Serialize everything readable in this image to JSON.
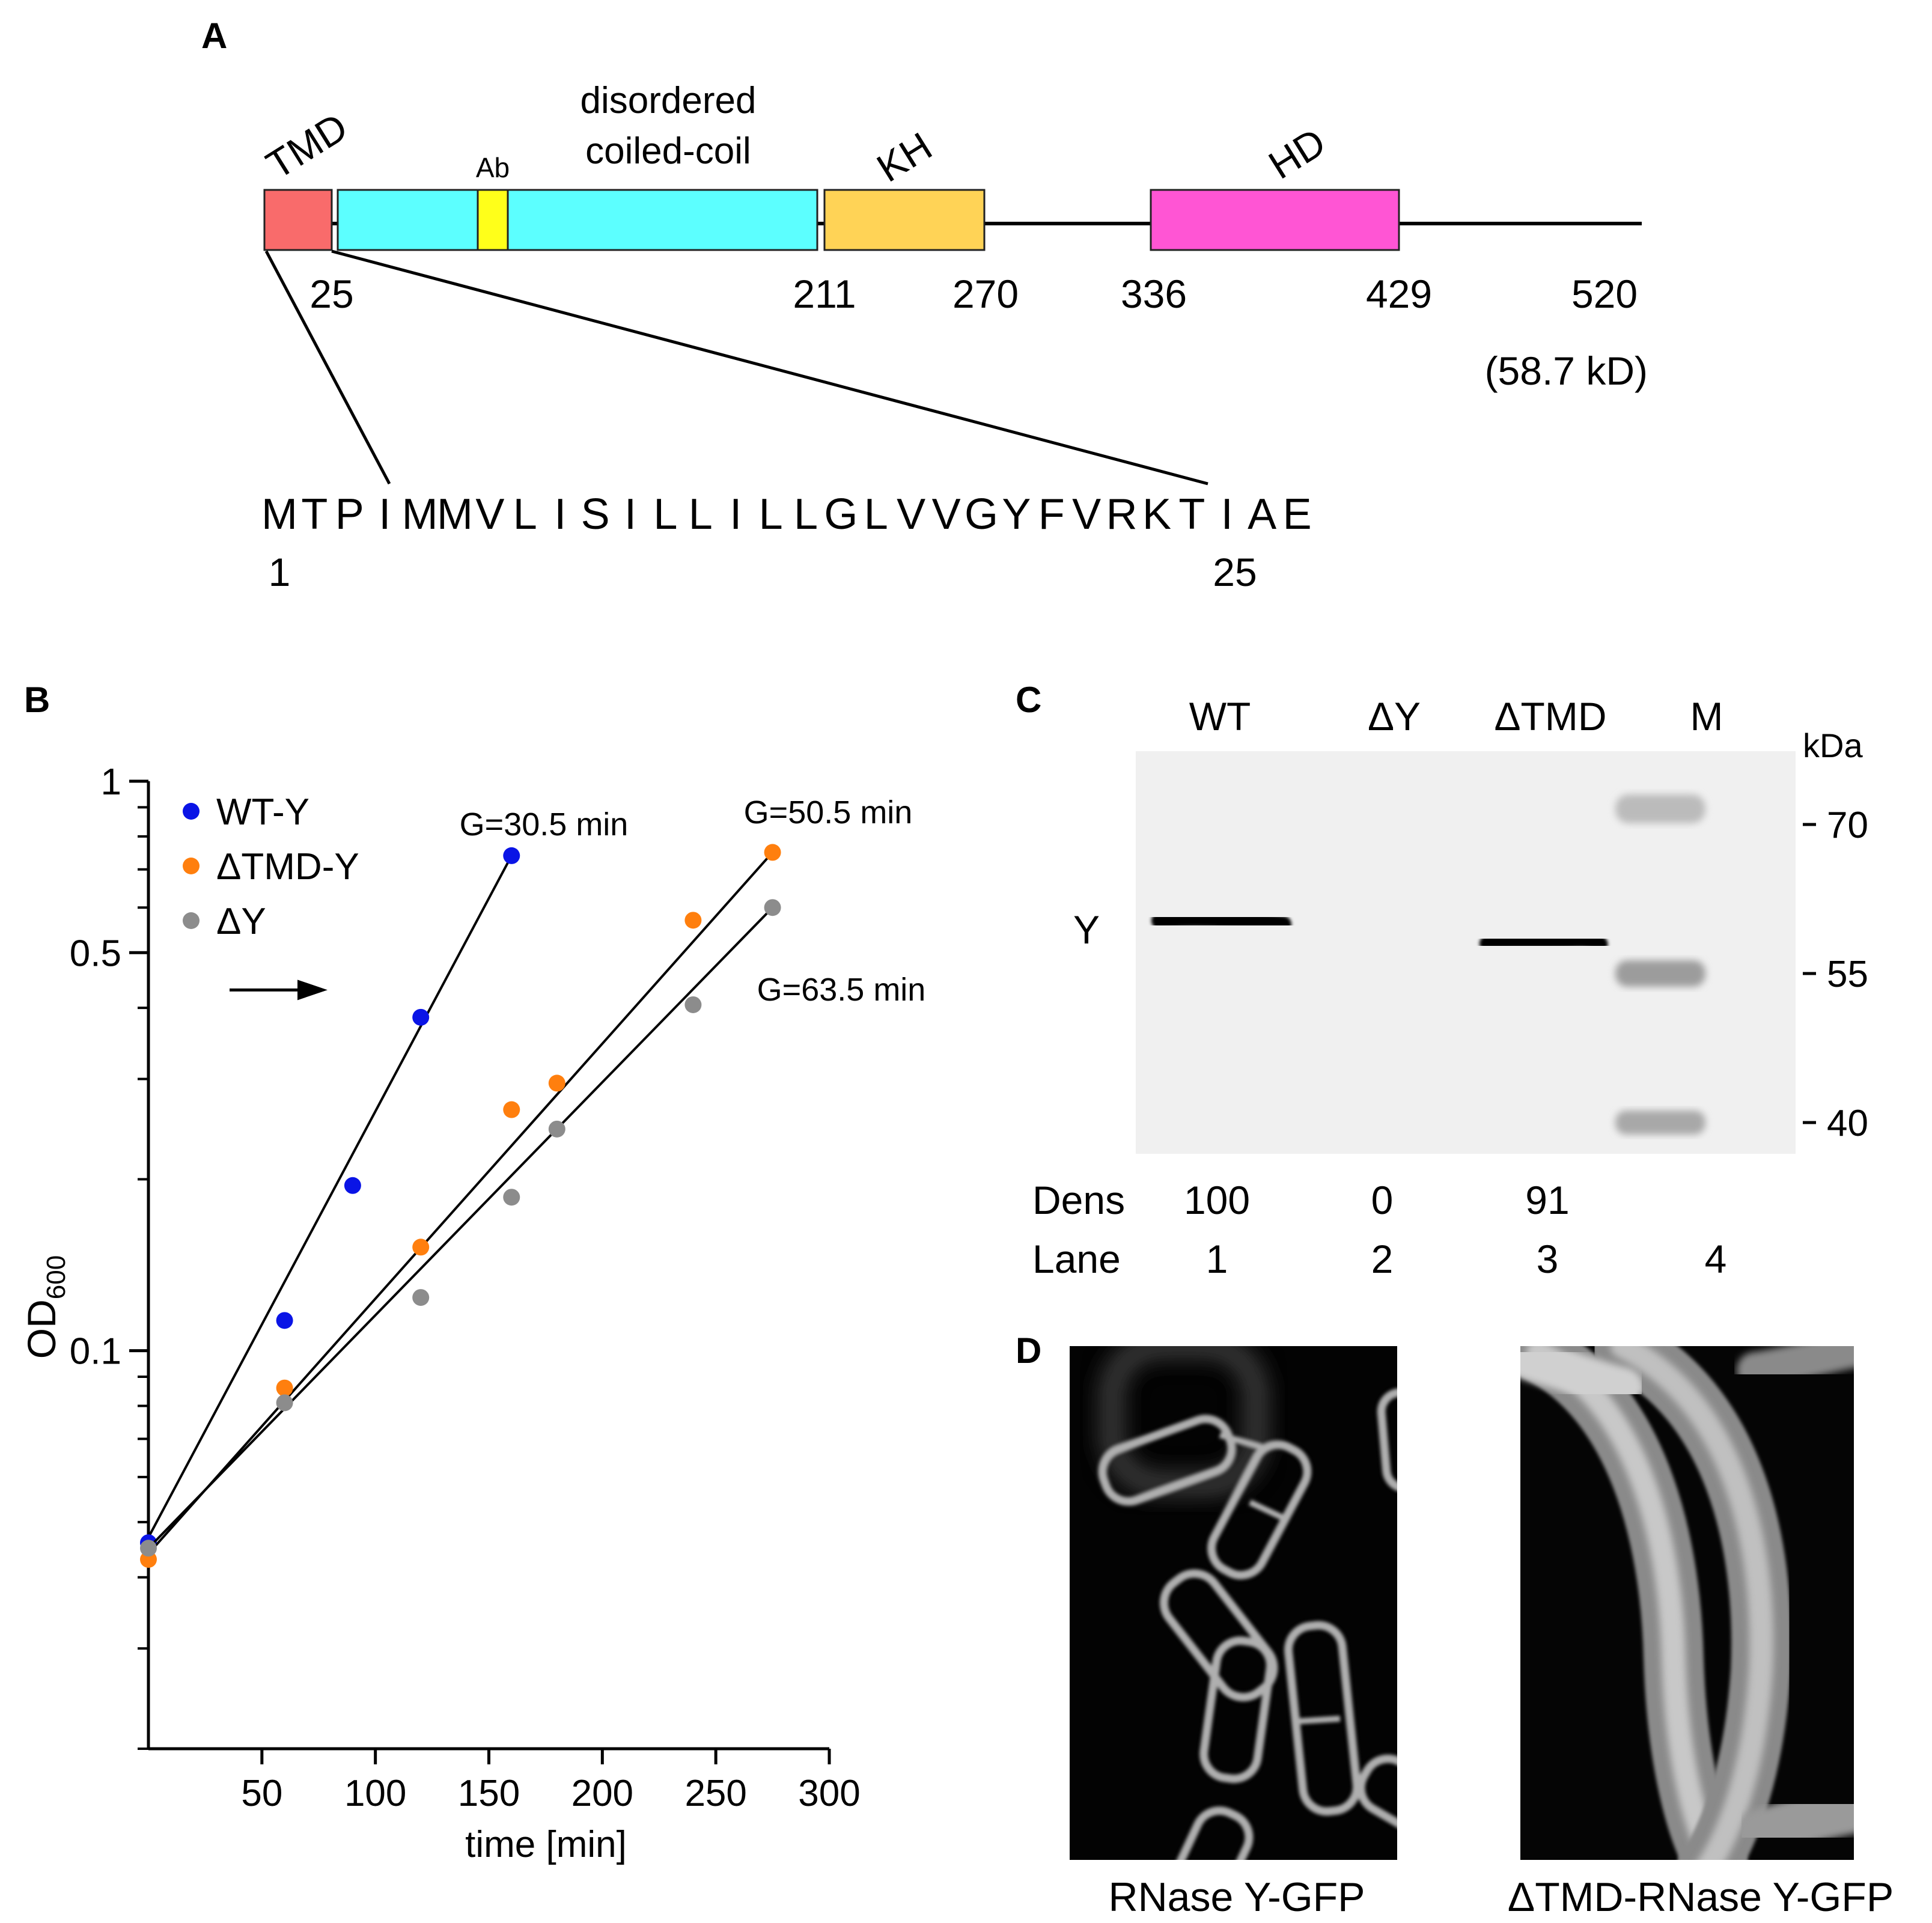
{
  "panels": {
    "a": "A",
    "b": "B",
    "c": "C",
    "d": "D"
  },
  "panel_a": {
    "domains": [
      {
        "label": "TMD",
        "start": 1,
        "end": 25,
        "color": "#F96B6B"
      },
      {
        "label": "disordered",
        "label2": "coiled-coil",
        "start": 25,
        "end": 211,
        "color": "#5CFFFF"
      },
      {
        "label": "Ab",
        "start": 75,
        "end": 86,
        "color": "#FFFF1A"
      },
      {
        "label": "KH",
        "start": 211,
        "end": 270,
        "color": "#FFD356"
      },
      {
        "label": "HD",
        "start": 336,
        "end": 429,
        "color": "#FF55D4"
      }
    ],
    "positions": [
      "25",
      "211",
      "270",
      "336",
      "429",
      "520"
    ],
    "mass": "(58.7 kD)",
    "sequence": [
      "M",
      "T",
      "P",
      "I",
      "M",
      "M",
      "V",
      "L",
      "I",
      "S",
      "I",
      "L",
      "L",
      "I",
      "L",
      "L",
      "G",
      "L",
      "V",
      "V",
      "G",
      "Y",
      "F",
      "V",
      "R",
      "K",
      "T",
      "I",
      "A",
      "E"
    ],
    "seq_start": "1",
    "seq_end": "25"
  },
  "chart_data": {
    "type": "scatter",
    "xlabel": "time [min]",
    "ylabel": "OD",
    "ylabel_sub": "600",
    "yscale": "log",
    "xlim": [
      0,
      300
    ],
    "ylim": [
      0.02,
      1
    ],
    "xticks": [
      50,
      100,
      150,
      200,
      250,
      300
    ],
    "yticks": [
      0.1,
      0.5,
      1
    ],
    "ytick_labels": [
      "0.1",
      "0.5",
      "1"
    ],
    "series": [
      {
        "name": "WT-Y",
        "color": "#0A14E6",
        "x": [
          0,
          60,
          90,
          120,
          160
        ],
        "y": [
          0.046,
          0.113,
          0.195,
          0.385,
          0.74
        ],
        "fit": [
          [
            0,
            0.047
          ],
          [
            160,
            0.74
          ]
        ],
        "growth_label": "G=30.5 min"
      },
      {
        "name": "ΔTMD-Y",
        "color": "#FF7F0E",
        "x": [
          0,
          60,
          120,
          160,
          180,
          240,
          275
        ],
        "y": [
          0.043,
          0.086,
          0.152,
          0.265,
          0.295,
          0.57,
          0.75
        ],
        "fit": [
          [
            0,
            0.044
          ],
          [
            275,
            0.75
          ]
        ],
        "growth_label": "G=50.5 min"
      },
      {
        "name": "ΔY",
        "color": "#8C8C8C",
        "x": [
          0,
          60,
          120,
          160,
          180,
          240,
          275
        ],
        "y": [
          0.045,
          0.081,
          0.124,
          0.186,
          0.245,
          0.405,
          0.6
        ],
        "fit": [
          [
            0,
            0.045
          ],
          [
            275,
            0.6
          ]
        ],
        "growth_label": "G=63.5 min"
      }
    ],
    "legend_placement": "top-left",
    "arrow_at_y": 0.43
  },
  "panel_c": {
    "lanes": [
      "WT",
      "ΔY",
      "ΔTMD",
      "M"
    ],
    "band_label": "Y",
    "kda_title": "kDa",
    "markers": [
      "70",
      "55",
      "40"
    ],
    "dens_label": "Dens",
    "dens": [
      "100",
      "0",
      "91",
      ""
    ],
    "lane_label": "Lane",
    "lane_numbers": [
      "1",
      "2",
      "3",
      "4"
    ]
  },
  "panel_d": {
    "captions": [
      "RNase Y-GFP",
      "ΔTMD-RNase Y-GFP"
    ]
  }
}
